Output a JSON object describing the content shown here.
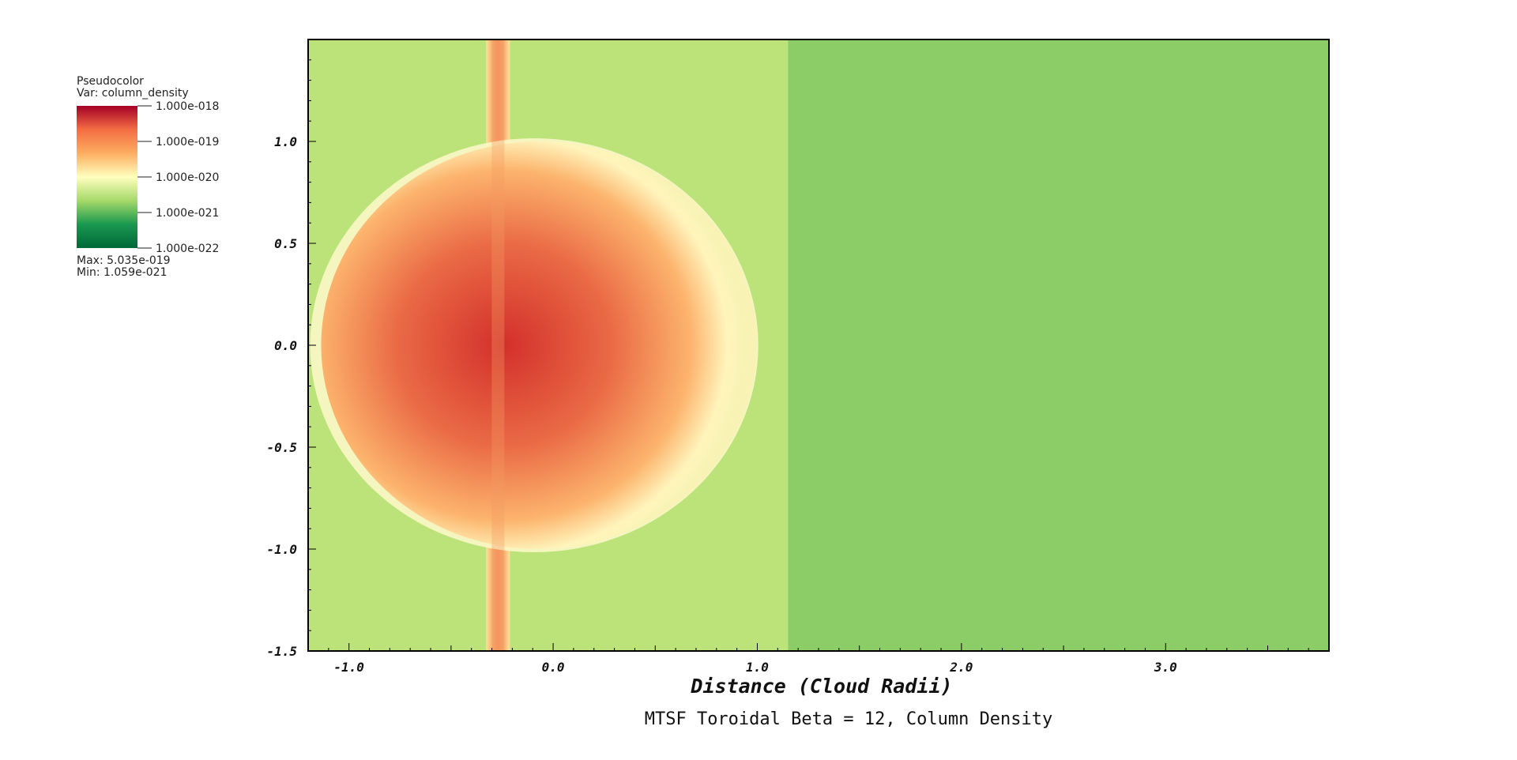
{
  "chart_data": {
    "type": "heatmap",
    "title": "MTSF Toroidal Beta = 12, Column Density",
    "xlabel": "Distance (Cloud Radii)",
    "ylabel": "",
    "xlim": [
      -1.2,
      3.8
    ],
    "ylim": [
      -1.5,
      1.5
    ],
    "x_ticks": [
      -1.0,
      0.0,
      1.0,
      2.0,
      3.0
    ],
    "x_tick_labels": [
      "-1.0",
      "0.0",
      "1.0",
      "2.0",
      "3.0"
    ],
    "y_ticks": [
      1.0,
      0.5,
      0.0,
      -0.5,
      -1.0,
      -1.5
    ],
    "y_tick_labels": [
      "1.0",
      "0.5",
      "0.0",
      "-0.5",
      "-1.0",
      "-1.5"
    ],
    "grid": false,
    "legend": {
      "position": "top-left",
      "header": "Pseudocolor",
      "variable": "Var: column_density",
      "colorbar_labels": [
        "1.000e-018",
        "1.000e-019",
        "1.000e-020",
        "1.000e-021",
        "1.000e-022"
      ],
      "colorbar_colors": [
        "#a50026",
        "#f46d43",
        "#fdae61",
        "#ffffbf",
        "#a6d96a",
        "#1a9850",
        "#006837"
      ],
      "max_label": "Max:  5.035e-019",
      "min_label": "Min:  1.059e-021"
    },
    "features": [
      {
        "name": "dense-cloud",
        "center": [
          0.0,
          0.0
        ],
        "radius_x": 0.97,
        "radius_y": 1.0,
        "peak_value": "5.035e-019"
      },
      {
        "name": "vertical-filament",
        "x": -0.27,
        "y_range": [
          -1.5,
          1.5
        ]
      },
      {
        "name": "background-shock-boundary",
        "x": 1.15
      }
    ],
    "colors": {
      "background_left": "#bce27a",
      "background_right": "#8ccd68",
      "cloud_core": "#d43b2f",
      "cloud_edge": "#fff6c0"
    }
  }
}
